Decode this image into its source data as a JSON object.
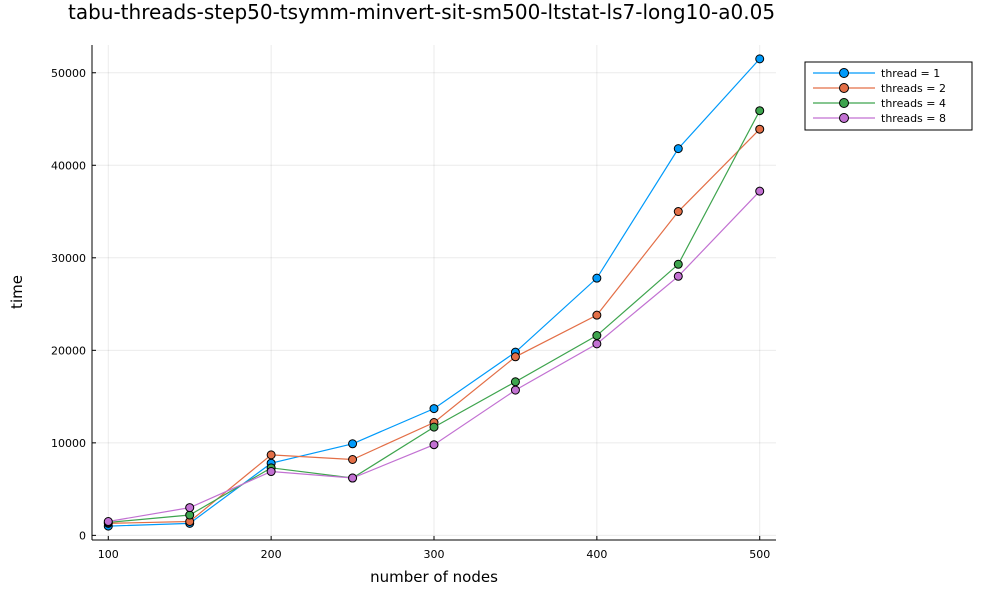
{
  "chart_data": {
    "type": "line",
    "title": "tabu-threads-step50-tsymm-minvert-sit-sm500-ltstat-ls7-long10-a0.05",
    "xlabel": "number of nodes",
    "ylabel": "time",
    "x": [
      100,
      150,
      200,
      250,
      300,
      350,
      400,
      450,
      500
    ],
    "xlim": [
      90,
      510
    ],
    "ylim": [
      -500,
      53000
    ],
    "xticks": [
      100,
      200,
      300,
      400,
      500
    ],
    "yticks": [
      0,
      10000,
      20000,
      30000,
      40000,
      50000
    ],
    "grid": true,
    "legend_position": "top-right",
    "series": [
      {
        "name": "thread = 1",
        "color": "#009AFA",
        "values": [
          1000,
          1300,
          7800,
          9900,
          13700,
          19800,
          27800,
          41800,
          51500
        ]
      },
      {
        "name": "threads = 2",
        "color": "#E36F47",
        "values": [
          1300,
          1500,
          8700,
          8200,
          12200,
          19300,
          23800,
          35000,
          43900
        ]
      },
      {
        "name": "threads = 4",
        "color": "#3EA44E",
        "values": [
          1400,
          2200,
          7300,
          6200,
          11700,
          16600,
          21600,
          29300,
          45900
        ]
      },
      {
        "name": "threads = 8",
        "color": "#C271D2",
        "values": [
          1500,
          3000,
          6900,
          6200,
          9800,
          15700,
          20700,
          28000,
          37200
        ]
      }
    ]
  }
}
